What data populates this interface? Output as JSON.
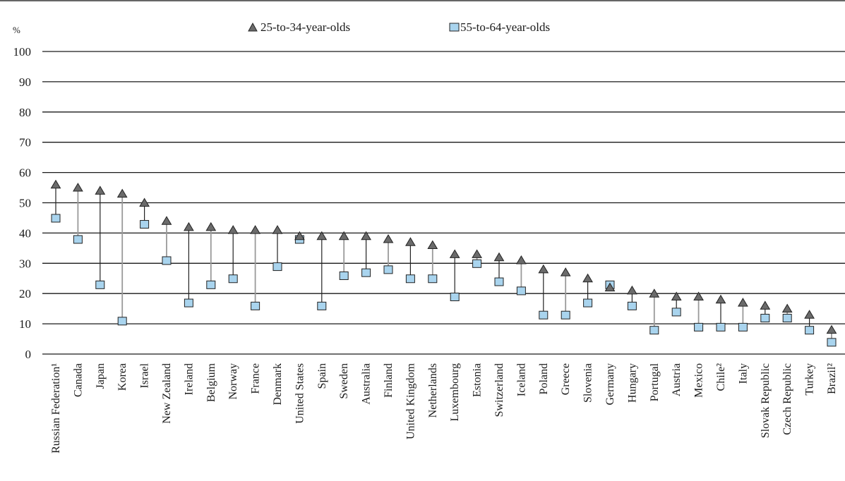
{
  "chart_data": {
    "type": "scatter",
    "unit": "%",
    "ylim": [
      0,
      100
    ],
    "yticks": [
      0,
      10,
      20,
      30,
      40,
      50,
      60,
      70,
      80,
      90,
      100
    ],
    "grid": true,
    "legend_position": "top-center",
    "categories": [
      "Russian Federation¹",
      "Canada",
      "Japan",
      "Korea",
      "Israel",
      "New Zealand",
      "Ireland",
      "Belgium",
      "Norway",
      "France",
      "Denmark",
      "United States",
      "Spain",
      "Sweden",
      "Australia",
      "Finland",
      "United Kingdom",
      "Netherlands",
      "Luxembourg",
      "Estonia",
      "Switzerland",
      "Iceland",
      "Poland",
      "Greece",
      "Slovenia",
      "Germany",
      "Hungary",
      "Portugal",
      "Austria",
      "Mexico",
      "Chile²",
      "Italy",
      "Slovak Republic",
      "Czech Republic",
      "Turkey",
      "Brazil²"
    ],
    "series": [
      {
        "name": "25-to-34-year-olds",
        "marker": "triangle",
        "color": "#6b6b6b",
        "values": [
          56,
          55,
          54,
          53,
          50,
          44,
          42,
          42,
          41,
          41,
          41,
          39,
          39,
          39,
          39,
          38,
          37,
          36,
          33,
          33,
          32,
          31,
          28,
          27,
          25,
          22,
          21,
          20,
          19,
          19,
          18,
          17,
          16,
          15,
          13,
          8
        ]
      },
      {
        "name": "55-to-64-year-olds",
        "marker": "square",
        "color": "#a9d4ee",
        "values": [
          45,
          38,
          23,
          11,
          43,
          31,
          17,
          23,
          25,
          16,
          29,
          38,
          16,
          26,
          27,
          28,
          25,
          25,
          19,
          30,
          24,
          21,
          13,
          13,
          17,
          23,
          16,
          8,
          14,
          9,
          9,
          9,
          12,
          12,
          8,
          4
        ]
      }
    ],
    "connector_colors": {
      "younger_higher_dark": "#222222",
      "younger_higher_light": "#9a9a9a"
    }
  }
}
